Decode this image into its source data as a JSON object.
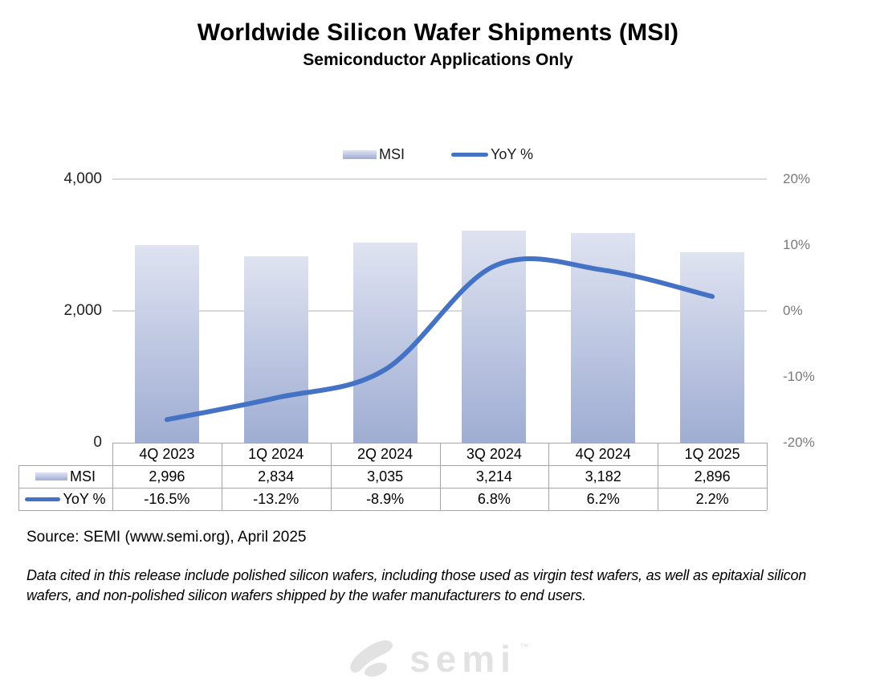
{
  "title": "Worldwide Silicon Wafer Shipments (MSI)",
  "subtitle": "Semiconductor Applications Only",
  "legend": {
    "msi_label": "MSI",
    "yoy_label": "YoY %"
  },
  "chart_data": {
    "type": "bar+line",
    "categories": [
      "4Q 2023",
      "1Q 2024",
      "2Q 2024",
      "3Q 2024",
      "4Q 2024",
      "1Q 2025"
    ],
    "series": [
      {
        "name": "MSI",
        "type": "bar",
        "axis": "left",
        "values": [
          2996,
          2834,
          3035,
          3214,
          3182,
          2896
        ]
      },
      {
        "name": "YoY %",
        "type": "line",
        "axis": "right",
        "values": [
          -16.5,
          -13.2,
          -8.9,
          6.8,
          6.2,
          2.2
        ]
      }
    ],
    "left_axis": {
      "min": 0,
      "max": 4000,
      "tick_labels": [
        "4,000",
        "2,000",
        "0"
      ],
      "tick_values": [
        4000,
        2000,
        0
      ]
    },
    "right_axis": {
      "min": -20,
      "max": 20,
      "tick_labels": [
        "20%",
        "10%",
        "0%",
        "-10%",
        "-20%"
      ],
      "tick_values": [
        20,
        10,
        0,
        -10,
        -20
      ]
    },
    "gridline_values_left": [
      4000,
      2000
    ],
    "legend_position": "top-center",
    "grid": "horizontal-major-only"
  },
  "table": {
    "msi_row_label": "MSI",
    "yoy_row_label": "YoY %",
    "msi_values": [
      "2,996",
      "2,834",
      "3,035",
      "3,214",
      "3,182",
      "2,896"
    ],
    "yoy_values": [
      "-16.5%",
      "-13.2%",
      "-8.9%",
      "6.8%",
      "6.2%",
      "2.2%"
    ]
  },
  "source": "Source: SEMI (www.semi.org), April 2025",
  "note": "Data cited in this release include polished silicon wafers, including those used as virgin test wafers, as well as epitaxial silicon wafers, and non-polished silicon wafers shipped by the wafer manufacturers to end users.",
  "logo": {
    "text": "semi",
    "trademark": "™"
  },
  "colors": {
    "bar_top": "#dfe3f1",
    "bar_bottom": "#9fadd3",
    "line": "#4472c4",
    "grid": "#d9d9d9",
    "right_axis_text": "#7a7a7a",
    "table_border": "#a6a6a6",
    "logo": "#e2e2e2"
  }
}
